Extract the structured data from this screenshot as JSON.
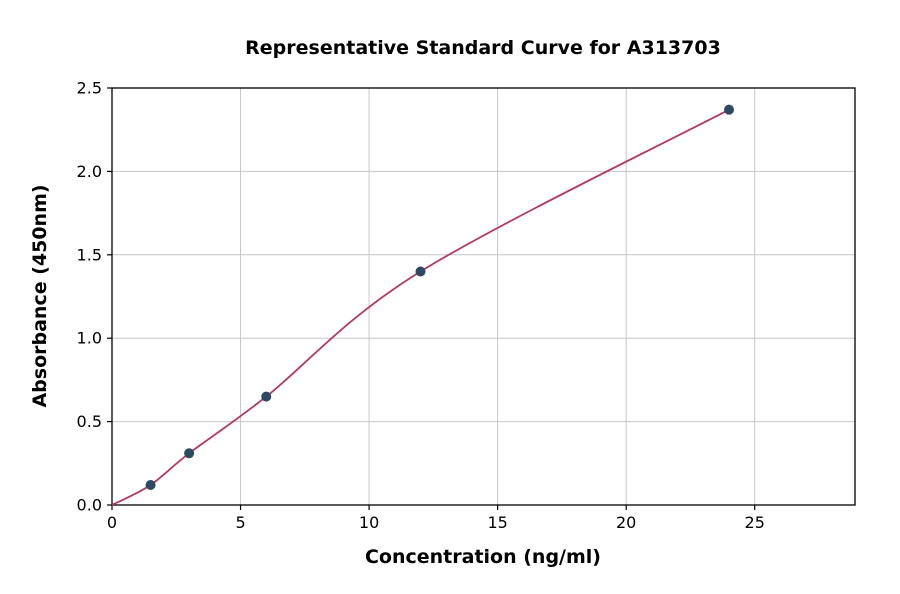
{
  "chart_data": {
    "type": "scatter",
    "title": "Representative Standard Curve for A313703",
    "xlabel": "Concentration (ng/ml)",
    "ylabel": "Absorbance (450nm)",
    "xlim": [
      0,
      28.9
    ],
    "ylim": [
      0,
      2.5
    ],
    "xticks": [
      0,
      5,
      10,
      15,
      20,
      25
    ],
    "xtick_labels": [
      "0",
      "5",
      "10",
      "15",
      "20",
      "25"
    ],
    "yticks": [
      0.0,
      0.5,
      1.0,
      1.5,
      2.0,
      2.5
    ],
    "ytick_labels": [
      "0.0",
      "0.5",
      "1.0",
      "1.5",
      "2.0",
      "2.5"
    ],
    "grid": true,
    "legend": "none",
    "points": [
      [
        1.5,
        0.12
      ],
      [
        3,
        0.31
      ],
      [
        6,
        0.65
      ],
      [
        12,
        1.4
      ],
      [
        24,
        2.37
      ]
    ],
    "curve": [
      [
        0,
        0.0
      ],
      [
        1.5,
        0.12
      ],
      [
        3,
        0.31
      ],
      [
        6,
        0.65
      ],
      [
        12,
        1.4
      ],
      [
        24,
        2.37
      ]
    ],
    "colors": {
      "curve": "#b5395f",
      "point": "#2e4a62",
      "grid": "#c6c6c6",
      "axis": "#000000",
      "background": "#ffffff"
    }
  }
}
